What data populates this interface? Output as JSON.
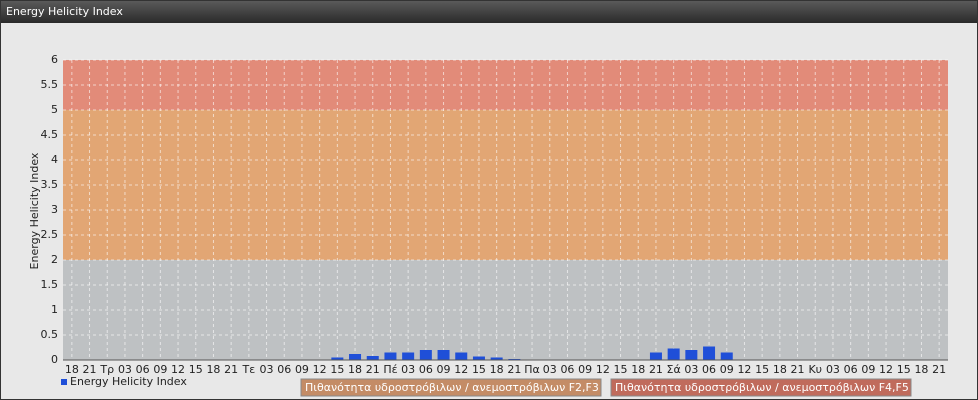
{
  "window_title": "Energy Helicity Index",
  "chart_data": {
    "type": "bar",
    "y_label": "Energy Helicity Index",
    "categories": [
      "18",
      "21",
      "Τρ",
      "03",
      "06",
      "09",
      "12",
      "15",
      "18",
      "21",
      "Τε",
      "03",
      "06",
      "09",
      "12",
      "15",
      "18",
      "21",
      "Πέ",
      "03",
      "06",
      "09",
      "12",
      "15",
      "18",
      "21",
      "Πα",
      "03",
      "06",
      "09",
      "12",
      "15",
      "18",
      "21",
      "Σά",
      "03",
      "06",
      "09",
      "12",
      "15",
      "18",
      "21",
      "Κυ",
      "03",
      "06",
      "09",
      "12",
      "15",
      "18",
      "21"
    ],
    "series": [
      {
        "name": "Energy Helicity Index",
        "color": "#1f4fd8",
        "values": [
          0.01,
          0.01,
          0.01,
          0.01,
          0.01,
          0.01,
          0.01,
          0.01,
          0.01,
          0.01,
          0.01,
          0.01,
          0.01,
          0.01,
          0.01,
          0.05,
          0.12,
          0.08,
          0.15,
          0.15,
          0.2,
          0.2,
          0.15,
          0.07,
          0.05,
          0.02,
          0.01,
          0.01,
          0.01,
          0.01,
          0.01,
          0.01,
          0.01,
          0.15,
          0.23,
          0.2,
          0.27,
          0.15,
          0.01,
          0.01,
          0.01,
          0.01,
          0.01,
          0.01,
          0.01,
          0.01,
          0.01,
          0.01,
          0.01,
          0.01
        ]
      }
    ],
    "ylim": [
      0,
      6
    ],
    "yticks": [
      0,
      0.5,
      1,
      1.5,
      2,
      2.5,
      3,
      3.5,
      4,
      4.5,
      5,
      5.5,
      6
    ],
    "grid": true,
    "bands": [
      {
        "from": 0,
        "to": 2,
        "color": "#bec1c3"
      },
      {
        "from": 2,
        "to": 5,
        "color": "#e2a674",
        "legend_color": "#c48c66",
        "label": "Πιθανότητα υδροστρόβιλων / ανεμοστρόβιλων F2,F3"
      },
      {
        "from": 5,
        "to": 6,
        "color": "#e28b79",
        "legend_color": "#c06b5c",
        "label": "Πιθανότητα υδροστρόβιλων / ανεμοστρόβιλων F4,F5"
      }
    ]
  }
}
